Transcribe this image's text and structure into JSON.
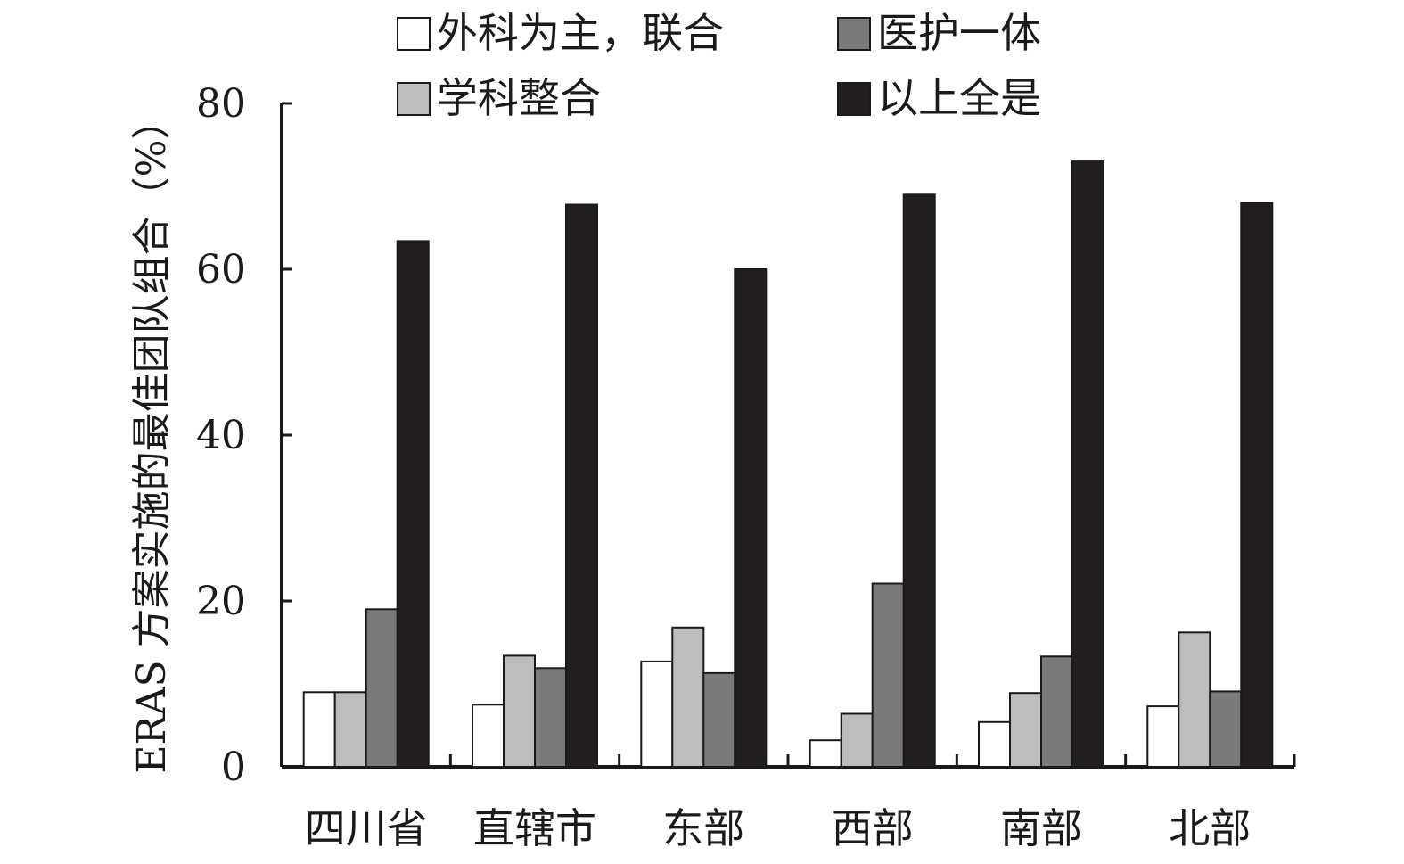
{
  "chart_data": {
    "type": "bar",
    "title": "",
    "ylabel": "ERAS 方案实施的最佳团队组合（%）",
    "xlabel": "",
    "ylim": [
      0,
      80
    ],
    "yticks": [
      0,
      20,
      40,
      60,
      80
    ],
    "grid": false,
    "legend_position": "top",
    "categories": [
      "四川省",
      "直辖市",
      "东部",
      "西部",
      "南部",
      "北部"
    ],
    "series": [
      {
        "name": "外科为主，联合",
        "color": "#ffffff",
        "values": [
          9.0,
          7.5,
          12.7,
          3.2,
          5.4,
          7.3
        ]
      },
      {
        "name": "学科整合",
        "color": "#bdbdbd",
        "values": [
          9.0,
          13.4,
          16.8,
          6.4,
          8.9,
          16.2
        ]
      },
      {
        "name": "医护一体",
        "color": "#7a7a7a",
        "values": [
          19.0,
          11.9,
          11.3,
          22.1,
          13.3,
          9.1
        ]
      },
      {
        "name": "以上全是",
        "color": "#231f20",
        "values": [
          63.4,
          67.8,
          60.0,
          69.0,
          73.0,
          68.0
        ]
      }
    ]
  }
}
